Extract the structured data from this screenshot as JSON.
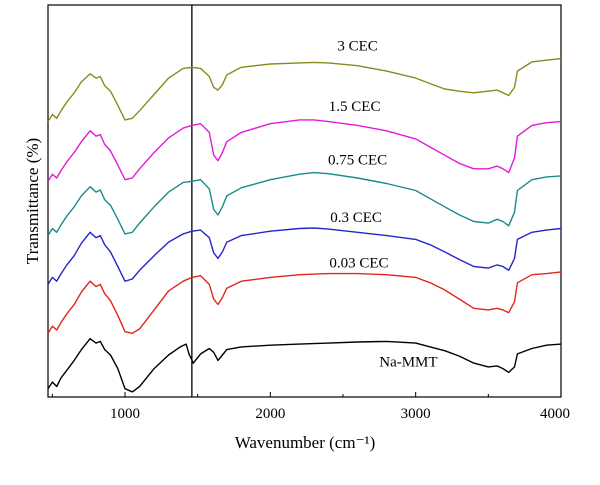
{
  "chart_data": {
    "type": "line",
    "title": "",
    "xlabel": "Wavenumber (cm⁻¹)",
    "ylabel": "Transmittance (%)",
    "xlim": [
      470,
      4000
    ],
    "ylim": [
      0,
      7
    ],
    "y_ticks_shown": false,
    "x_ticks": [
      1000,
      2000,
      3000,
      4000
    ],
    "x_tick_labels": [
      "1000",
      "2000",
      "3000",
      "4000"
    ],
    "reference_line_x": 1460,
    "legend": "inline labels above each curve",
    "series": [
      {
        "name": "Na-MMT",
        "color": "#000000",
        "offset": 0,
        "label_x": 2950,
        "label_y": 0.38,
        "x": [
          470,
          500,
          530,
          560,
          600,
          650,
          700,
          760,
          800,
          830,
          860,
          900,
          950,
          1000,
          1050,
          1100,
          1200,
          1300,
          1380,
          1420,
          1440,
          1470,
          1520,
          1580,
          1610,
          1640,
          1670,
          1700,
          1800,
          2000,
          2200,
          2400,
          2600,
          2800,
          3000,
          3100,
          3200,
          3300,
          3400,
          3500,
          3560,
          3600,
          3640,
          3680,
          3700,
          3800,
          3900,
          4000
        ],
        "y": [
          0.08,
          0.2,
          0.12,
          0.28,
          0.42,
          0.6,
          0.8,
          1.0,
          0.92,
          0.95,
          0.8,
          0.7,
          0.45,
          0.08,
          0.02,
          0.12,
          0.45,
          0.7,
          0.85,
          0.9,
          0.72,
          0.55,
          0.72,
          0.82,
          0.75,
          0.6,
          0.7,
          0.8,
          0.85,
          0.88,
          0.9,
          0.92,
          0.94,
          0.95,
          0.92,
          0.85,
          0.78,
          0.68,
          0.55,
          0.48,
          0.5,
          0.45,
          0.38,
          0.48,
          0.72,
          0.82,
          0.88,
          0.9
        ]
      },
      {
        "name": "0.03 CEC",
        "color": "#e1261c",
        "offset": 1.08,
        "label_x": 2610,
        "label_y": 1.12,
        "x": [
          470,
          500,
          530,
          560,
          600,
          650,
          700,
          760,
          800,
          830,
          860,
          900,
          950,
          1000,
          1050,
          1100,
          1200,
          1300,
          1400,
          1460,
          1520,
          1580,
          1610,
          1640,
          1670,
          1700,
          1800,
          2000,
          2200,
          2400,
          2600,
          2800,
          3000,
          3100,
          3200,
          3300,
          3400,
          3500,
          3560,
          3600,
          3640,
          3680,
          3700,
          3800,
          3900,
          4000
        ],
        "y": [
          0.02,
          0.15,
          0.08,
          0.22,
          0.38,
          0.55,
          0.78,
          0.98,
          0.88,
          0.92,
          0.75,
          0.62,
          0.35,
          0.05,
          0.02,
          0.1,
          0.45,
          0.8,
          0.98,
          1.05,
          1.08,
          0.92,
          0.65,
          0.55,
          0.68,
          0.85,
          0.98,
          1.05,
          1.1,
          1.12,
          1.12,
          1.1,
          1.05,
          0.95,
          0.82,
          0.65,
          0.48,
          0.45,
          0.48,
          0.45,
          0.4,
          0.6,
          0.95,
          1.1,
          1.12,
          1.15
        ]
      },
      {
        "name": "0.3 CEC",
        "color": "#2626c8",
        "offset": 1.98,
        "label_x": 2590,
        "label_y": 1.06,
        "x": [
          470,
          500,
          530,
          560,
          600,
          650,
          700,
          760,
          800,
          830,
          860,
          900,
          950,
          1000,
          1050,
          1100,
          1200,
          1300,
          1400,
          1460,
          1520,
          1580,
          1610,
          1640,
          1670,
          1700,
          1800,
          2000,
          2200,
          2300,
          2400,
          2600,
          2800,
          3000,
          3100,
          3200,
          3300,
          3400,
          3500,
          3560,
          3600,
          3640,
          3680,
          3700,
          3800,
          3900,
          4000
        ],
        "y": [
          0.02,
          0.15,
          0.08,
          0.22,
          0.38,
          0.55,
          0.78,
          0.98,
          0.88,
          0.92,
          0.75,
          0.62,
          0.35,
          0.08,
          0.12,
          0.28,
          0.55,
          0.8,
          0.95,
          1.0,
          1.02,
          0.88,
          0.6,
          0.5,
          0.62,
          0.8,
          0.92,
          1.0,
          1.05,
          1.06,
          1.04,
          0.98,
          0.92,
          0.85,
          0.75,
          0.62,
          0.48,
          0.35,
          0.32,
          0.38,
          0.35,
          0.28,
          0.5,
          0.85,
          0.98,
          1.02,
          1.05
        ]
      },
      {
        "name": "0.75 CEC",
        "color": "#1a8a8a",
        "offset": 2.88,
        "label_x": 2600,
        "label_y": 1.22,
        "x": [
          470,
          500,
          530,
          560,
          600,
          650,
          700,
          760,
          800,
          830,
          860,
          900,
          950,
          1000,
          1050,
          1100,
          1200,
          1300,
          1400,
          1460,
          1520,
          1580,
          1610,
          1640,
          1670,
          1700,
          1800,
          2000,
          2200,
          2300,
          2400,
          2600,
          2800,
          3000,
          3100,
          3200,
          3300,
          3400,
          3500,
          3560,
          3600,
          3640,
          3680,
          3700,
          3800,
          3900,
          4000
        ],
        "y": [
          0.02,
          0.15,
          0.08,
          0.22,
          0.38,
          0.55,
          0.75,
          0.92,
          0.82,
          0.86,
          0.68,
          0.58,
          0.32,
          0.05,
          0.08,
          0.25,
          0.55,
          0.82,
          1.0,
          1.02,
          1.05,
          0.88,
          0.5,
          0.4,
          0.55,
          0.75,
          0.9,
          1.05,
          1.15,
          1.18,
          1.16,
          1.08,
          0.98,
          0.85,
          0.7,
          0.55,
          0.4,
          0.28,
          0.25,
          0.32,
          0.28,
          0.2,
          0.45,
          0.85,
          1.05,
          1.1,
          1.12
        ]
      },
      {
        "name": "1.5 CEC",
        "color": "#e21ad9",
        "offset": 3.88,
        "label_x": 2580,
        "label_y": 1.2,
        "x": [
          470,
          500,
          530,
          560,
          600,
          650,
          700,
          760,
          800,
          830,
          860,
          900,
          950,
          1000,
          1050,
          1100,
          1200,
          1300,
          1400,
          1460,
          1520,
          1580,
          1610,
          1640,
          1670,
          1700,
          1800,
          2000,
          2200,
          2300,
          2400,
          2600,
          2800,
          3000,
          3100,
          3200,
          3300,
          3400,
          3500,
          3560,
          3600,
          3640,
          3680,
          3700,
          3800,
          3900,
          4000
        ],
        "y": [
          0.02,
          0.15,
          0.08,
          0.22,
          0.38,
          0.55,
          0.75,
          0.95,
          0.85,
          0.88,
          0.7,
          0.58,
          0.32,
          0.05,
          0.08,
          0.25,
          0.55,
          0.82,
          1.0,
          1.05,
          1.08,
          0.92,
          0.5,
          0.4,
          0.55,
          0.75,
          0.92,
          1.08,
          1.15,
          1.15,
          1.12,
          1.05,
          0.95,
          0.8,
          0.65,
          0.5,
          0.35,
          0.25,
          0.25,
          0.3,
          0.25,
          0.18,
          0.45,
          0.85,
          1.05,
          1.1,
          1.12
        ]
      },
      {
        "name": "3 CEC",
        "color": "#8b8b1a",
        "offset": 4.88,
        "label_x": 2600,
        "label_y": 1.32,
        "x": [
          470,
          500,
          530,
          560,
          600,
          650,
          700,
          760,
          800,
          830,
          860,
          900,
          950,
          1000,
          1050,
          1100,
          1200,
          1300,
          1400,
          1460,
          1520,
          1580,
          1610,
          1640,
          1670,
          1700,
          1800,
          2000,
          2200,
          2300,
          2400,
          2600,
          2800,
          3000,
          3100,
          3200,
          3300,
          3400,
          3500,
          3560,
          3600,
          3640,
          3680,
          3700,
          3800,
          3900,
          4000
        ],
        "y": [
          0.12,
          0.25,
          0.18,
          0.32,
          0.48,
          0.65,
          0.85,
          1.0,
          0.92,
          0.95,
          0.78,
          0.68,
          0.42,
          0.15,
          0.18,
          0.32,
          0.62,
          0.92,
          1.1,
          1.12,
          1.1,
          0.95,
          0.75,
          0.7,
          0.8,
          0.98,
          1.12,
          1.18,
          1.2,
          1.21,
          1.2,
          1.15,
          1.05,
          0.92,
          0.82,
          0.72,
          0.68,
          0.65,
          0.68,
          0.7,
          0.65,
          0.6,
          0.75,
          1.05,
          1.22,
          1.25,
          1.28
        ]
      }
    ]
  }
}
